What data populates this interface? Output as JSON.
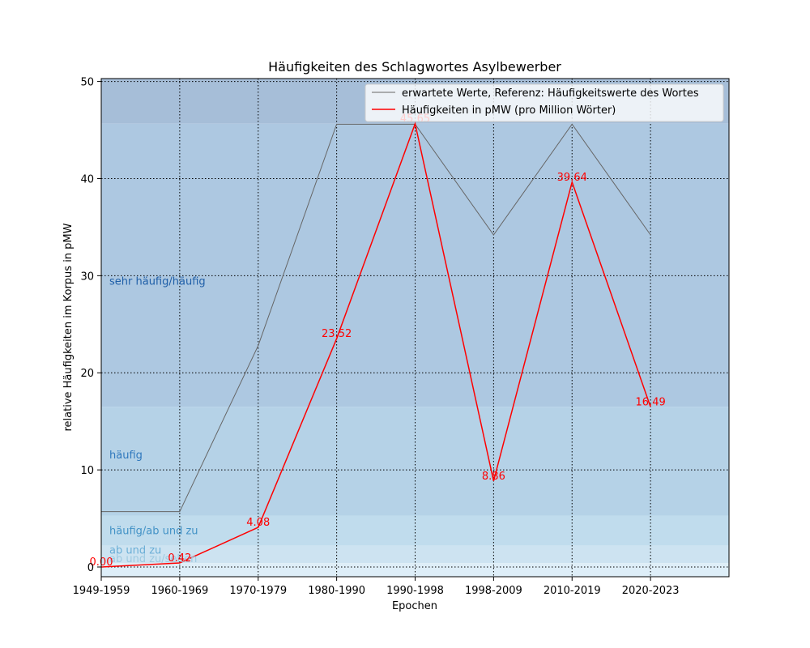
{
  "chart_data": {
    "type": "line",
    "title": "Häufigkeiten des Schlagwortes Asylbewerber",
    "xlabel": "Epochen",
    "ylabel": "relative Häufigkeiten im Korpus in pMW",
    "categories": [
      "1949-1959",
      "1960-1969",
      "1970-1979",
      "1980-1990",
      "1990-1998",
      "1998-2009",
      "2010-2019",
      "2020-2023"
    ],
    "ylim": [
      -1,
      50.3
    ],
    "yticks": [
      0,
      10,
      20,
      30,
      40,
      50
    ],
    "grid": true,
    "legend_position": "top-right",
    "series": [
      {
        "name": "erwartete Werte, Referenz: Häufigkeitswerte des Wortes",
        "color": "#666666",
        "values": [
          5.7,
          5.7,
          22.8,
          45.6,
          45.6,
          34.2,
          45.6,
          34.2
        ]
      },
      {
        "name": "Häufigkeiten in pMW (pro Million Wörter)",
        "color": "#ff0000",
        "values": [
          0.0,
          0.42,
          4.08,
          23.52,
          45.65,
          8.86,
          39.64,
          16.49
        ],
        "labels": [
          "0.00",
          "0.42",
          "4.08",
          "23.52",
          "45.65",
          "8.86",
          "39.64",
          "16.49"
        ]
      }
    ],
    "bands": [
      {
        "from": 45.65,
        "to": 50.3,
        "color": "#a6bed8"
      },
      {
        "from": 16.5,
        "to": 45.65,
        "color": "#adc8e1",
        "label": "sehr häufig/häufig",
        "label_y": 29.5,
        "label_color": "#1f5fa8"
      },
      {
        "from": 5.3,
        "to": 16.5,
        "color": "#b5d2e7",
        "label": "häufig",
        "label_y": 11.6,
        "label_color": "#2f78bd"
      },
      {
        "from": 2.2,
        "to": 5.3,
        "color": "#c0dced",
        "label": "häufig/ab und zu",
        "label_y": 3.8,
        "label_color": "#4292c6"
      },
      {
        "from": 0.4,
        "to": 2.2,
        "color": "#cde3f1",
        "label": "ab und zu",
        "label_y": 1.8,
        "label_color": "#6aaed6"
      },
      {
        "from": -1,
        "to": 0.4,
        "color": "#deeef8",
        "label": "ab und zu/selten",
        "label_y": 0.9,
        "label_color": "#9ecae1"
      }
    ]
  }
}
